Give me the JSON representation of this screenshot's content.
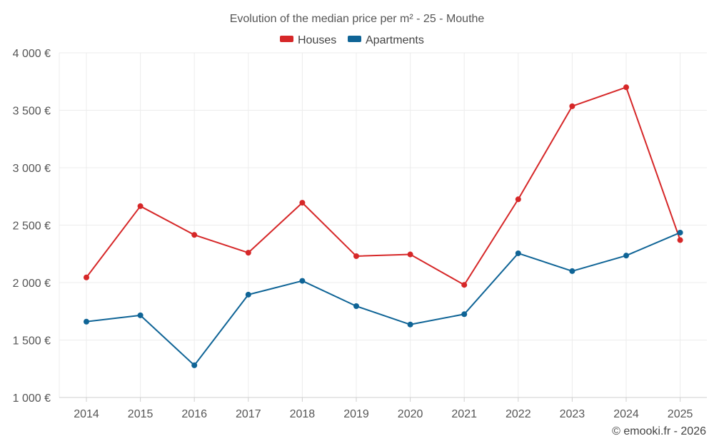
{
  "chart_data": {
    "type": "line",
    "title": "Evolution of the median price per m² - 25 - Mouthe",
    "categories": [
      "2014",
      "2015",
      "2016",
      "2017",
      "2018",
      "2019",
      "2020",
      "2021",
      "2022",
      "2023",
      "2024",
      "2025"
    ],
    "series": [
      {
        "name": "Houses",
        "color": "#d62728",
        "values": [
          2045,
          2665,
          2415,
          2260,
          2695,
          2230,
          2245,
          1980,
          2725,
          3535,
          3700,
          2370
        ]
      },
      {
        "name": "Apartments",
        "color": "#0f6496",
        "values": [
          1660,
          1715,
          1280,
          1895,
          2015,
          1795,
          1635,
          1725,
          2255,
          2100,
          2235,
          2435
        ]
      }
    ],
    "y_ticks": [
      {
        "value": 1000,
        "label": "1 000 €"
      },
      {
        "value": 1500,
        "label": "1 500 €"
      },
      {
        "value": 2000,
        "label": "2 000 €"
      },
      {
        "value": 2500,
        "label": "2 500 €"
      },
      {
        "value": 3000,
        "label": "3 000 €"
      },
      {
        "value": 3500,
        "label": "3 500 €"
      },
      {
        "value": 4000,
        "label": "4 000 €"
      }
    ],
    "ylim": [
      1000,
      4000
    ],
    "xlabel": "",
    "ylabel": "",
    "grid": true,
    "legend_position": "top-center"
  },
  "credit": "© emooki.fr - 2026"
}
